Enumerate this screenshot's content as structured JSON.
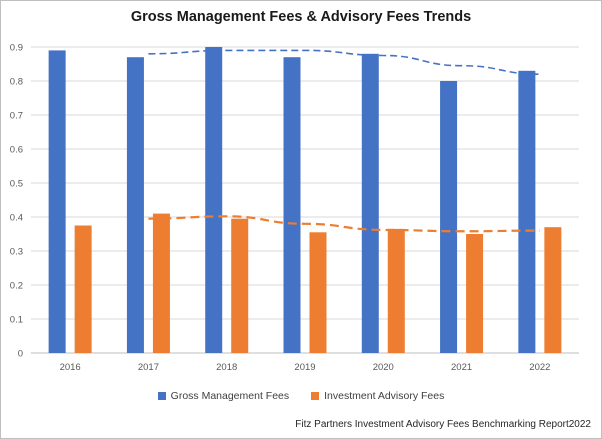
{
  "chart_data": {
    "type": "bar",
    "title": "Gross Management Fees & Advisory Fees Trends",
    "categories": [
      "2016",
      "2017",
      "2018",
      "2019",
      "2020",
      "2021",
      "2022"
    ],
    "series": [
      {
        "name": "Gross Management Fees",
        "values": [
          0.89,
          0.87,
          0.9,
          0.87,
          0.88,
          0.8,
          0.83
        ],
        "color": "#4472c4"
      },
      {
        "name": "Investment Advisory Fees",
        "values": [
          0.375,
          0.41,
          0.395,
          0.355,
          0.365,
          0.35,
          0.37
        ],
        "color": "#ed7d31"
      }
    ],
    "trendlines": [
      {
        "series": "Gross Management Fees",
        "x": [
          "2017",
          "2018",
          "2019",
          "2020",
          "2021",
          "2022"
        ],
        "values": [
          0.88,
          0.89,
          0.89,
          0.875,
          0.845,
          0.82
        ],
        "color": "#4472c4",
        "style": "dashed"
      },
      {
        "series": "Investment Advisory Fees",
        "x": [
          "2017",
          "2018",
          "2019",
          "2020",
          "2021",
          "2022"
        ],
        "values": [
          0.395,
          0.402,
          0.38,
          0.362,
          0.358,
          0.36
        ],
        "color": "#ed7d31",
        "style": "dashed"
      }
    ],
    "yticks": [
      "0",
      "0.1",
      "0.2",
      "0.3",
      "0.4",
      "0.5",
      "0.6",
      "0.7",
      "0.8",
      "0.9"
    ],
    "ylim": [
      0,
      0.9
    ],
    "grid": true,
    "legend_position": "bottom",
    "xlabel": "",
    "ylabel": ""
  },
  "source_note": "Fitz Partners Investment Advisory Fees Benchmarking Report2022"
}
